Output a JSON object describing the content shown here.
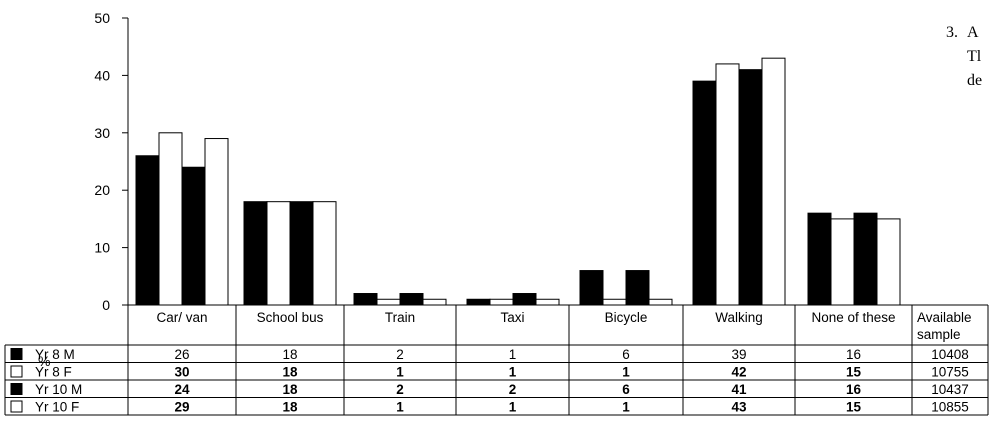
{
  "side_note": {
    "number": "3.",
    "line1_fragment": "A",
    "line2_fragment": "Tl",
    "line3_fragment": "de"
  },
  "chart_data": {
    "type": "bar",
    "ylabel": "%",
    "ylim": [
      0,
      50
    ],
    "yticks": [
      0,
      10,
      20,
      30,
      40,
      50
    ],
    "categories": [
      "Car/ van",
      "School bus",
      "Train",
      "Taxi",
      "Bicycle",
      "Walking",
      "None of these"
    ],
    "series": [
      {
        "name": "Yr 8 M",
        "fill": "#000000",
        "values": [
          26,
          18,
          2,
          1,
          6,
          39,
          16
        ],
        "sample": "10408",
        "bold": false
      },
      {
        "name": "Yr 8 F",
        "fill": "#ffffff",
        "values": [
          30,
          18,
          1,
          1,
          1,
          42,
          15
        ],
        "sample": "10755",
        "bold": true
      },
      {
        "name": "Yr 10 M",
        "fill": "#000000",
        "values": [
          24,
          18,
          2,
          2,
          6,
          41,
          16
        ],
        "sample": "10437",
        "bold": true
      },
      {
        "name": "Yr 10 F",
        "fill": "#ffffff",
        "values": [
          29,
          18,
          1,
          1,
          1,
          43,
          15
        ],
        "sample": "10855",
        "bold": true
      }
    ],
    "sample_header": [
      "Available",
      "sample"
    ]
  }
}
